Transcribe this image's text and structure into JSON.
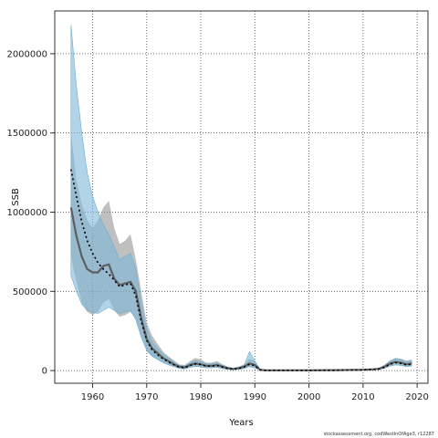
{
  "chart_data": {
    "type": "line",
    "xlabel": "Years",
    "ylabel": "SSB",
    "caption": "stockassessment.org, codWestInOfAge3, r12287",
    "xlim": [
      1953,
      2022
    ],
    "ylim": [
      -80000,
      2270000
    ],
    "xticks": [
      1960,
      1970,
      1980,
      1990,
      2000,
      2010,
      2020
    ],
    "yticks": [
      0,
      500000,
      1000000,
      1500000,
      2000000
    ],
    "ytick_labels": [
      "0",
      "500000",
      "1000000",
      "1500000",
      "2000000"
    ],
    "grid": true,
    "colors": {
      "band_gray": "#8a8a8a",
      "band_blue": "#7fb8d8",
      "line_gray": "#555555",
      "line_black": "#000000"
    },
    "series": [
      {
        "style": "solid-gray",
        "x": [
          1956,
          1957,
          1958,
          1959,
          1960,
          1961,
          1962,
          1963,
          1964,
          1965,
          1966,
          1967,
          1968,
          1969,
          1970,
          1971,
          1972,
          1973,
          1974,
          1975,
          1976,
          1977,
          1978,
          1979,
          1980,
          1981,
          1982,
          1983,
          1984,
          1985,
          1986,
          1987,
          1988,
          1989,
          1990,
          1991,
          1992,
          2000,
          2005,
          2008,
          2010,
          2012,
          2013,
          2014,
          2015,
          2016,
          2017,
          2018,
          2019
        ],
        "y": [
          1030000,
          850000,
          720000,
          640000,
          620000,
          620000,
          660000,
          670000,
          580000,
          540000,
          550000,
          560000,
          500000,
          330000,
          200000,
          140000,
          110000,
          80000,
          60000,
          40000,
          25000,
          20000,
          35000,
          45000,
          40000,
          30000,
          30000,
          35000,
          25000,
          15000,
          10000,
          15000,
          25000,
          45000,
          35000,
          5000,
          2000,
          2000,
          3000,
          4000,
          5000,
          8000,
          12000,
          25000,
          45000,
          55000,
          50000,
          40000,
          45000
        ],
        "lower": [
          720000,
          560000,
          430000,
          370000,
          350000,
          370000,
          430000,
          450000,
          380000,
          340000,
          350000,
          370000,
          330000,
          210000,
          120000,
          90000,
          70000,
          50000,
          35000,
          25000,
          15000,
          10000,
          20000,
          25000,
          22000,
          15000,
          15000,
          20000,
          12000,
          7000,
          5000,
          8000,
          14000,
          25000,
          18000,
          2000,
          1000,
          1000,
          1500,
          2000,
          2500,
          5000,
          8000,
          16000,
          30000,
          38000,
          34000,
          28000,
          30000
        ],
        "upper": [
          1500000,
          1200000,
          1050000,
          950000,
          900000,
          950000,
          1030000,
          1070000,
          900000,
          800000,
          820000,
          860000,
          700000,
          500000,
          300000,
          220000,
          170000,
          120000,
          90000,
          65000,
          40000,
          35000,
          60000,
          80000,
          70000,
          50000,
          50000,
          60000,
          40000,
          25000,
          18000,
          25000,
          40000,
          75000,
          60000,
          9000,
          4000,
          4000,
          5000,
          7000,
          9000,
          12000,
          18000,
          38000,
          65000,
          80000,
          75000,
          62000,
          70000
        ]
      },
      {
        "style": "dotted-black",
        "x": [
          1956,
          1957,
          1958,
          1959,
          1960,
          1961,
          1962,
          1963,
          1964,
          1965,
          1966,
          1967,
          1968,
          1969,
          1970,
          1971,
          1972,
          1973,
          1974,
          1975,
          1976,
          1977,
          1978,
          1979,
          1980,
          1981,
          1982,
          1983,
          1984,
          1985,
          1986,
          1987,
          1988,
          1989,
          1990,
          1991,
          1992,
          2000,
          2005,
          2008,
          2010,
          2012,
          2013,
          2014,
          2015,
          2016,
          2017,
          2018,
          2019
        ],
        "y": [
          1270000,
          1100000,
          940000,
          820000,
          740000,
          680000,
          640000,
          610000,
          570000,
          530000,
          540000,
          550000,
          470000,
          310000,
          190000,
          130000,
          100000,
          75000,
          55000,
          37000,
          22000,
          18000,
          32000,
          42000,
          38000,
          28000,
          28000,
          32000,
          22000,
          13000,
          9000,
          13000,
          22000,
          40000,
          30000,
          3000,
          1000,
          1000,
          2000,
          3000,
          4000,
          7000,
          10000,
          22000,
          40000,
          50000,
          45000,
          36000,
          40000
        ],
        "lower": [
          600000,
          500000,
          420000,
          380000,
          370000,
          360000,
          380000,
          400000,
          380000,
          360000,
          370000,
          380000,
          320000,
          210000,
          130000,
          90000,
          70000,
          50000,
          37000,
          25000,
          14000,
          11000,
          20000,
          26000,
          24000,
          18000,
          18000,
          20000,
          13000,
          8000,
          5000,
          8000,
          13000,
          24000,
          17000,
          1500,
          600,
          600,
          1200,
          1800,
          2500,
          4500,
          6500,
          15000,
          28000,
          35000,
          32000,
          25000,
          28000
        ],
        "upper": [
          2180000,
          1800000,
          1500000,
          1250000,
          1100000,
          1000000,
          920000,
          860000,
          780000,
          700000,
          720000,
          740000,
          640000,
          420000,
          260000,
          180000,
          140000,
          105000,
          80000,
          55000,
          33000,
          28000,
          48000,
          62000,
          56000,
          42000,
          42000,
          48000,
          33000,
          20000,
          14000,
          20000,
          34000,
          120000,
          60000,
          6000,
          2000,
          2000,
          3500,
          5000,
          6500,
          10000,
          15000,
          32000,
          58000,
          75000,
          70000,
          56000,
          62000
        ]
      }
    ]
  }
}
